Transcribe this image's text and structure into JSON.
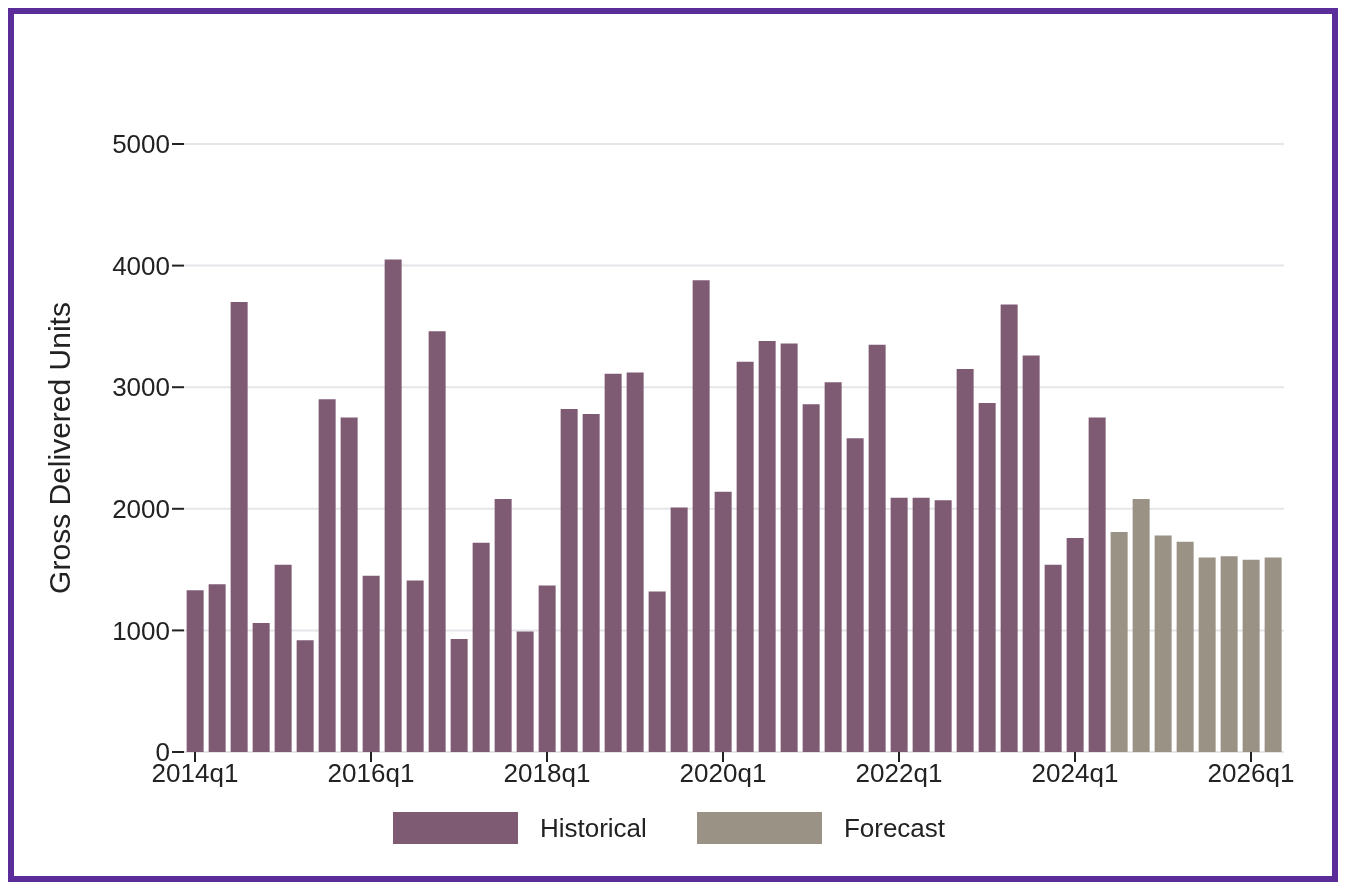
{
  "chart_data": {
    "type": "bar",
    "ylabel": "Gross Delivered Units",
    "categories": [
      "2014q1",
      null,
      null,
      null,
      null,
      null,
      null,
      null,
      "2016q1",
      null,
      null,
      null,
      null,
      null,
      null,
      null,
      "2018q1",
      null,
      null,
      null,
      null,
      null,
      null,
      null,
      "2020q1",
      null,
      null,
      null,
      null,
      null,
      null,
      null,
      "2022q1",
      null,
      null,
      null,
      null,
      null,
      null,
      null,
      "2024q1",
      null,
      null,
      null,
      null,
      null,
      null,
      null,
      "2026q1",
      null
    ],
    "series": [
      {
        "name": "Historical",
        "color": "#7f5a73",
        "values": [
          1330,
          1380,
          3700,
          1060,
          1540,
          920,
          2900,
          2750,
          1450,
          4050,
          1410,
          3460,
          930,
          1720,
          2080,
          990,
          1370,
          2820,
          2780,
          3110,
          3120,
          1320,
          2010,
          3880,
          2140,
          3210,
          3380,
          3360,
          2860,
          3040,
          2580,
          3350,
          2090,
          2090,
          2070,
          3150,
          2870,
          3680,
          3260,
          1540,
          1760,
          2750,
          null,
          null,
          null,
          null,
          null,
          null,
          null,
          null
        ]
      },
      {
        "name": "Forecast",
        "color": "#9a9284",
        "values": [
          null,
          null,
          null,
          null,
          null,
          null,
          null,
          null,
          null,
          null,
          null,
          null,
          null,
          null,
          null,
          null,
          null,
          null,
          null,
          null,
          null,
          null,
          null,
          null,
          null,
          null,
          null,
          null,
          null,
          null,
          null,
          null,
          null,
          null,
          null,
          null,
          null,
          null,
          null,
          null,
          null,
          null,
          1810,
          2080,
          1780,
          1730,
          1600,
          1610,
          1580,
          1600
        ]
      }
    ],
    "stacked": true,
    "ylim": [
      0,
      5000
    ],
    "yticks": [
      0,
      1000,
      2000,
      3000,
      4000,
      5000
    ],
    "grid": "y",
    "legend": "bottom"
  }
}
